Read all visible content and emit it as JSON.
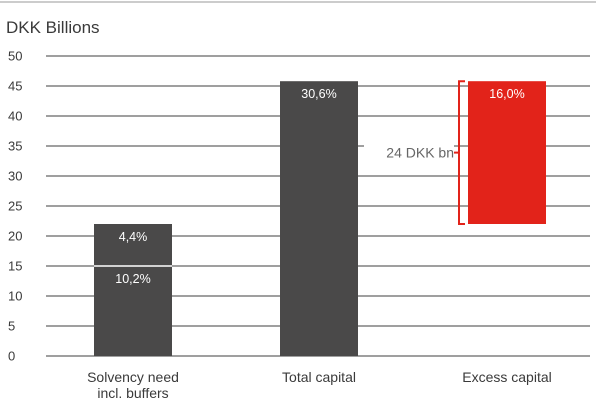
{
  "chart_data": {
    "type": "bar",
    "unit_label": "DKK Billions",
    "categories": [
      "Solvency need\nincl. buffers",
      "Total capital",
      "Excess capital"
    ],
    "y_ticks": [
      0,
      5,
      10,
      15,
      20,
      25,
      30,
      35,
      40,
      45,
      50
    ],
    "ylim": [
      0,
      50
    ],
    "grid": true,
    "bars": [
      {
        "category": "Solvency need\nincl. buffers",
        "segments": [
          {
            "from": 0,
            "to": 15,
            "label": "10,2%",
            "color": "#4a4949"
          },
          {
            "from": 15,
            "to": 22,
            "label": "4,4%",
            "color": "#4a4949"
          }
        ]
      },
      {
        "category": "Total capital",
        "segments": [
          {
            "from": 0,
            "to": 45.8,
            "label": "30,6%",
            "color": "#4a4949"
          }
        ]
      },
      {
        "category": "Excess capital",
        "segments": [
          {
            "from": 22,
            "to": 45.8,
            "label": "16,0%",
            "color": "#e2231a"
          }
        ]
      }
    ],
    "bracket": {
      "from": 22,
      "to": 45.8,
      "label": "24 DKK bn",
      "color": "#e2231a"
    }
  }
}
